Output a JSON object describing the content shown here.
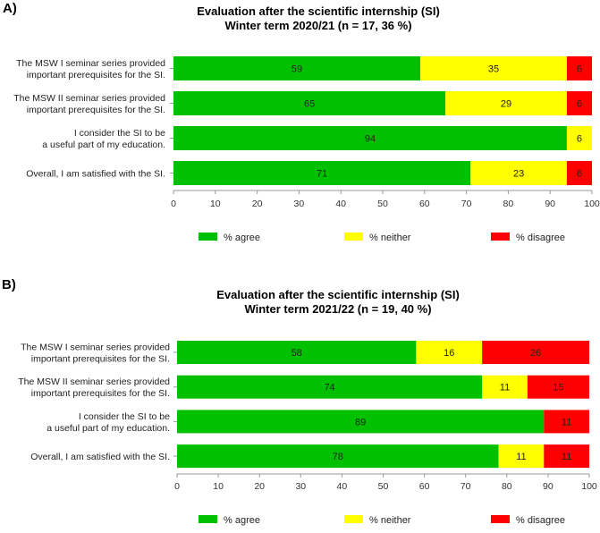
{
  "chart_data": [
    {
      "type": "bar",
      "orientation": "horizontal",
      "stacked": true,
      "panel_label": "A)",
      "title": "Evaluation after the scientific internship (SI)",
      "subtitle": "Winter term 2020/21 (n = 17, 36 %)",
      "categories": [
        [
          "The MSW I seminar series provided",
          "important prerequisites for the SI."
        ],
        [
          "The MSW II seminar series provided",
          "important prerequisites for the SI."
        ],
        [
          "I consider the SI to be",
          "a useful part of my education."
        ],
        [
          "Overall, I am satisfied with the SI."
        ]
      ],
      "series": [
        {
          "name": "% agree",
          "color": "#00c000",
          "values": [
            59,
            65,
            94,
            71
          ]
        },
        {
          "name": "% neither",
          "color": "#ffff00",
          "values": [
            35,
            29,
            6,
            23
          ]
        },
        {
          "name": "% disagree",
          "color": "#ff0000",
          "values": [
            6,
            6,
            0,
            6
          ]
        }
      ],
      "xlim": [
        0,
        100
      ],
      "xticks": [
        "0",
        "10",
        "20",
        "30",
        "40",
        "50",
        "60",
        "70",
        "80",
        "90",
        "100"
      ],
      "grid": false,
      "legend": "bottom"
    },
    {
      "type": "bar",
      "orientation": "horizontal",
      "stacked": true,
      "panel_label": "B)",
      "title": "Evaluation after the scientific internship (SI)",
      "subtitle": "Winter term 2021/22 (n = 19, 40 %)",
      "categories": [
        [
          "The MSW I seminar series provided",
          "important prerequisites for the SI."
        ],
        [
          "The MSW II seminar series provided",
          "important prerequisites for the SI."
        ],
        [
          "I consider the SI to be",
          "a useful part of my education."
        ],
        [
          "Overall, I am satisfied with the SI."
        ]
      ],
      "series": [
        {
          "name": "% agree",
          "color": "#00c000",
          "values": [
            58,
            74,
            89,
            78
          ]
        },
        {
          "name": "% neither",
          "color": "#ffff00",
          "values": [
            16,
            11,
            0,
            11
          ]
        },
        {
          "name": "% disagree",
          "color": "#ff0000",
          "values": [
            26,
            15,
            11,
            11
          ]
        }
      ],
      "xlim": [
        0,
        100
      ],
      "xticks": [
        "0",
        "10",
        "20",
        "30",
        "40",
        "50",
        "60",
        "70",
        "80",
        "90",
        "100"
      ],
      "grid": false,
      "legend": "bottom"
    }
  ]
}
